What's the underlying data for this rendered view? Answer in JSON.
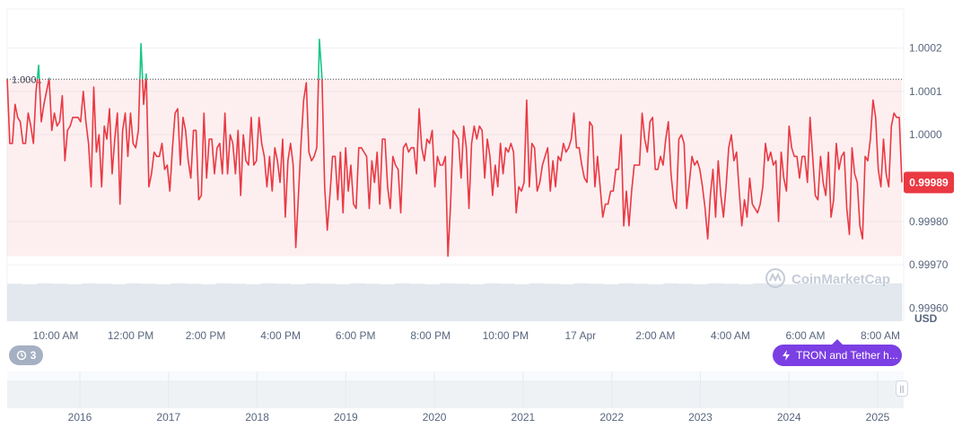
{
  "chart_data": {
    "type": "line",
    "title": "",
    "xlabel": "",
    "ylabel": "USD",
    "ylim": [
      0.99957,
      1.00029
    ],
    "y_ticks": [
      {
        "value": 1.0002,
        "label": "1.0002"
      },
      {
        "value": 1.0001,
        "label": "1.0001"
      },
      {
        "value": 1.0,
        "label": "1.0000"
      },
      {
        "value": 0.9998,
        "label": "0.99980"
      },
      {
        "value": 0.9997,
        "label": "0.99970"
      },
      {
        "value": 0.9996,
        "label": "0.99960"
      }
    ],
    "x_ticks": [
      "10:00 AM",
      "12:00 PM",
      "2:00 PM",
      "4:00 PM",
      "6:00 PM",
      "8:00 PM",
      "10:00 PM",
      "17 Apr",
      "2:00 AM",
      "4:00 AM",
      "6:00 AM",
      "8:00 AM"
    ],
    "reference_line": {
      "value": 1.000128,
      "label": "1.0001"
    },
    "current_price": {
      "value": 0.99989,
      "label": "0.99989"
    },
    "series": [
      {
        "name": "price",
        "color_below": "#ea3943",
        "color_above": "#16c784",
        "values": [
          1.00013,
          0.99998,
          0.99998,
          1.00007,
          1.00004,
          1.00003,
          0.99998,
          0.99998,
          1.00005,
          1.00002,
          0.99998,
          1.0001,
          1.00016,
          1.00003,
          1.00007,
          1.0001,
          1.00013,
          1.00001,
          1.00005,
          1.00002,
          1.00003,
          1.00009,
          0.99994,
          1.00001,
          1.00002,
          1.00004,
          1.00004,
          1.00004,
          1.00003,
          1.0001,
          1.00003,
          0.99998,
          0.99988,
          1.00011,
          0.99996,
          1,
          0.99988,
          1.00002,
          0.99999,
          1.00006,
          0.99991,
          0.99999,
          1.00005,
          0.99984,
          1.00001,
          1.00005,
          0.99995,
          1.00005,
          0.99998,
          0.99997,
          1.00001,
          1.00021,
          1.00007,
          1.00014,
          0.99988,
          0.99991,
          0.99996,
          0.99995,
          0.99995,
          0.99998,
          0.99992,
          0.99993,
          0.99987,
          0.99997,
          1.00005,
          1.00006,
          0.99993,
          1.00004,
          1.00001,
          0.99994,
          0.9999,
          1.00001,
          1.00001,
          0.99985,
          0.99986,
          1.00005,
          0.9999,
          0.99999,
          0.99999,
          0.99991,
          0.99997,
          0.99998,
          0.99991,
          1.00005,
          0.99991,
          1,
          0.99998,
          0.99991,
          1.00001,
          0.99986,
          1,
          0.99994,
          0.99993,
          1.00004,
          0.99993,
          0.99994,
          1.00004,
          0.99998,
          0.99995,
          0.99988,
          0.99995,
          0.99987,
          0.99997,
          0.99994,
          0.99989,
          0.99999,
          0.99981,
          0.99994,
          0.99998,
          0.99993,
          0.99974,
          0.99986,
          0.99998,
          1.00008,
          1.00012,
          0.99996,
          0.99994,
          0.99995,
          0.99997,
          1.00022,
          1.00013,
          0.99988,
          0.99978,
          0.99986,
          0.99995,
          0.99995,
          0.99985,
          0.99996,
          0.99982,
          0.99997,
          0.99987,
          0.99993,
          0.99984,
          0.99983,
          0.99997,
          0.99997,
          0.99996,
          0.99995,
          0.99983,
          0.99994,
          0.99989,
          0.99996,
          0.99984,
          0.99999,
          0.99999,
          0.99988,
          0.99983,
          0.99995,
          0.99993,
          0.99992,
          0.99982,
          0.99997,
          0.99998,
          0.99996,
          0.99997,
          0.99997,
          0.99991,
          1.00006,
          0.99997,
          0.99994,
          0.99999,
          0.99998,
          1.00001,
          0.99988,
          0.99995,
          0.99993,
          0.99993,
          0.99995,
          0.99972,
          0.99984,
          1.00001,
          1,
          0.99999,
          0.9999,
          1.00002,
          0.99997,
          0.99983,
          0.99998,
          1.00002,
          0.99999,
          1.00002,
          1.00001,
          0.9999,
          0.99999,
          0.99995,
          0.99986,
          0.99993,
          0.99988,
          0.99998,
          0.99991,
          0.99997,
          0.99996,
          0.99998,
          0.99996,
          0.99982,
          0.99988,
          0.99987,
          0.99989,
          1.00008,
          0.99988,
          0.99998,
          0.99997,
          0.99987,
          0.99989,
          0.99993,
          0.99995,
          0.99997,
          0.99987,
          0.99994,
          0.99988,
          0.99995,
          0.99994,
          0.99998,
          0.99996,
          0.99997,
          0.99999,
          1.00005,
          0.99997,
          0.99997,
          0.99993,
          0.9999,
          0.99989,
          1.00003,
          1.00002,
          0.99988,
          0.99995,
          0.99988,
          0.99981,
          0.99984,
          0.99984,
          0.99987,
          0.99987,
          0.99992,
          0.99992,
          1.0,
          0.99979,
          0.99987,
          0.99979,
          0.99987,
          0.99993,
          0.99993,
          0.99993,
          1.00005,
          0.99999,
          0.99996,
          1.00003,
          1.00004,
          0.99992,
          0.99992,
          0.99995,
          0.99993,
          0.99999,
          1.00003,
          0.99991,
          0.99985,
          0.99983,
          0.99999,
          1,
          0.99998,
          0.99983,
          0.99989,
          0.99995,
          0.99993,
          0.99994,
          0.99992,
          0.99988,
          0.99983,
          0.99976,
          0.99986,
          0.99992,
          0.99981,
          0.99994,
          0.99986,
          0.99981,
          0.99988,
          0.99997,
          1.0,
          0.99994,
          0.99996,
          0.99987,
          0.99979,
          0.99985,
          0.99981,
          0.9999,
          0.99984,
          0.99983,
          0.99982,
          0.99984,
          0.99988,
          0.99998,
          0.99994,
          0.99996,
          0.99993,
          0.99994,
          0.9998,
          0.99996,
          0.9999,
          0.99987,
          1.00002,
          0.99997,
          0.99995,
          0.99995,
          0.9999,
          0.99995,
          0.99995,
          0.99989,
          1.00004,
          0.99995,
          0.99986,
          0.99985,
          0.99995,
          0.99989,
          0.99986,
          0.99996,
          0.99981,
          0.99985,
          0.99998,
          0.99992,
          0.99995,
          0.99996,
          0.99983,
          0.99977,
          0.99997,
          0.99991,
          0.99989,
          0.99979,
          0.99976,
          0.99995,
          0.99994,
          0.99999,
          1.00008,
          1.00004,
          0.99992,
          0.99988,
          0.99999,
          0.99991,
          0.99988,
          1.00002,
          1.00005,
          1.00004,
          1.00004,
          0.99989
        ]
      }
    ],
    "volume_values": [
      0.87,
      0.86,
      0.88,
      0.87,
      0.86,
      0.88,
      0.87,
      0.86,
      0.88,
      0.87,
      0.86,
      0.88,
      0.87,
      0.86,
      0.88,
      0.87,
      0.86,
      0.88,
      0.87,
      0.86,
      0.88,
      0.87,
      0.86,
      0.88,
      0.87,
      0.86,
      0.88,
      0.87,
      0.86,
      0.88,
      0.87,
      0.86,
      0.88,
      0.87,
      0.86,
      0.88,
      0.87,
      0.86,
      0.88,
      0.87,
      0.86,
      0.88,
      0.87,
      0.86,
      0.88,
      0.87,
      0.86,
      0.88,
      0.87,
      0.86,
      0.88,
      0.87,
      0.86,
      0.88,
      0.87,
      0.86,
      0.88,
      0.87,
      0.86,
      0.88
    ],
    "navigator": {
      "years": [
        "2016",
        "2017",
        "2018",
        "2019",
        "2020",
        "2021",
        "2022",
        "2023",
        "2024",
        "2025"
      ]
    }
  },
  "watermark": {
    "text": "CoinMarketCap"
  },
  "history_pill": {
    "count": "3",
    "icon": "history-icon"
  },
  "news_pill": {
    "text": "TRON and Tether h...",
    "icon": "lightning-icon"
  },
  "colors": {
    "up": "#16c784",
    "down": "#ea3943",
    "badge": "#ea3943",
    "accent": "#7b3fe4",
    "grid": "#eff2f5"
  }
}
